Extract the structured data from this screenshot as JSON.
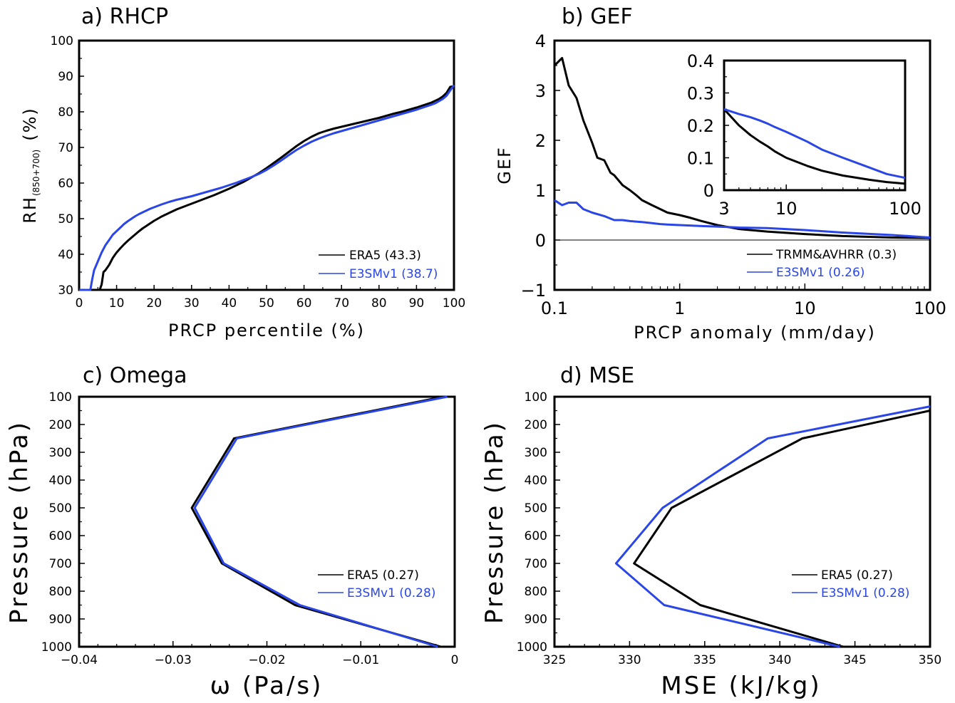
{
  "colors": {
    "black": "#000000",
    "blue": "#2b46e6"
  },
  "chart_data": [
    {
      "id": "a",
      "type": "line",
      "title": "a) RHCP",
      "xlabel": "PRCP percentile (%)",
      "ylabel_main": "RH",
      "ylabel_sub": "(850+700)",
      "ylabel_unit": "(%)",
      "xlim": [
        0,
        100
      ],
      "ylim": [
        30,
        100
      ],
      "xticks": [
        0,
        10,
        20,
        30,
        40,
        50,
        60,
        70,
        80,
        90,
        100
      ],
      "yticks": [
        30,
        40,
        50,
        60,
        70,
        80,
        90,
        100
      ],
      "legend_position": "bottom-right",
      "series": [
        {
          "name": "ERA5 (43.3)",
          "color": "#000000",
          "x": [
            0,
            5.5,
            6,
            6.5,
            7,
            8,
            9,
            10,
            11,
            12,
            13,
            14,
            15,
            16,
            17,
            18,
            19,
            20,
            21,
            22,
            23,
            24,
            25,
            26,
            27,
            28,
            29,
            30,
            32,
            34,
            36,
            38,
            40,
            42,
            44,
            46,
            48,
            50,
            52,
            54,
            56,
            58,
            60,
            62,
            64,
            66,
            68,
            70,
            72,
            74,
            76,
            78,
            80,
            82,
            84,
            86,
            88,
            90,
            92,
            94,
            95,
            96,
            97,
            98,
            99,
            100
          ],
          "y": [
            30,
            30,
            31.5,
            35,
            35.5,
            37,
            39,
            40.5,
            41.7,
            42.8,
            43.8,
            44.7,
            45.6,
            46.5,
            47.3,
            48,
            48.7,
            49.4,
            50,
            50.6,
            51.1,
            51.6,
            52.1,
            52.6,
            53,
            53.4,
            53.8,
            54.2,
            55,
            55.8,
            56.6,
            57.5,
            58.4,
            59.4,
            60.4,
            61.6,
            62.8,
            64.2,
            65.7,
            67.2,
            68.8,
            70.4,
            71.8,
            73,
            74,
            74.7,
            75.3,
            75.8,
            76.3,
            76.8,
            77.3,
            77.8,
            78.3,
            78.9,
            79.5,
            80,
            80.6,
            81.2,
            81.9,
            82.6,
            83.1,
            83.6,
            84.3,
            85.3,
            87,
            87.2
          ]
        },
        {
          "name": "E3SMv1 (38.7)",
          "color": "#2b46e6",
          "x": [
            0,
            3,
            3.5,
            4,
            5,
            6,
            7,
            8,
            9,
            10,
            11,
            12,
            13,
            14,
            15,
            16,
            17,
            18,
            19,
            20,
            22,
            24,
            26,
            28,
            30,
            32,
            34,
            36,
            38,
            40,
            42,
            44,
            46,
            48,
            50,
            52,
            54,
            56,
            58,
            60,
            62,
            64,
            66,
            68,
            70,
            72,
            74,
            76,
            78,
            80,
            82,
            84,
            86,
            88,
            90,
            92,
            94,
            95,
            96,
            97,
            98,
            99,
            100
          ],
          "y": [
            30,
            30,
            33,
            35.5,
            38,
            40.5,
            42.5,
            44,
            45.5,
            46.5,
            47.5,
            48.5,
            49.3,
            50,
            50.7,
            51.3,
            51.8,
            52.3,
            52.8,
            53.2,
            54,
            54.7,
            55.3,
            55.8,
            56.3,
            56.9,
            57.5,
            58.1,
            58.7,
            59.4,
            60.1,
            60.9,
            61.7,
            62.6,
            63.7,
            65,
            66.4,
            67.9,
            69.3,
            70.5,
            71.6,
            72.5,
            73.3,
            74,
            74.6,
            75.2,
            75.8,
            76.4,
            77,
            77.6,
            78.2,
            78.8,
            79.4,
            80,
            80.6,
            81.3,
            82,
            82.4,
            83,
            83.6,
            84.5,
            86,
            87.5
          ]
        }
      ]
    },
    {
      "id": "b",
      "type": "line",
      "title": "b) GEF",
      "xlabel": "PRCP anomaly (mm/day)",
      "ylabel": "GEF",
      "xscale": "log",
      "xlim": [
        0.1,
        100
      ],
      "ylim": [
        -1,
        4
      ],
      "xtick_labels": [
        "0.1",
        "1",
        "10",
        "100"
      ],
      "ytick_labels": [
        "−1",
        "0",
        "1",
        "2",
        "3",
        "4"
      ],
      "legend_position": "bottom-right",
      "series": [
        {
          "name": "TRMM&AVHRR (0.3)",
          "color": "#000000",
          "x": [
            0.1,
            0.115,
            0.13,
            0.15,
            0.17,
            0.2,
            0.22,
            0.25,
            0.28,
            0.3,
            0.35,
            0.4,
            0.45,
            0.5,
            0.6,
            0.7,
            0.8,
            1,
            1.2,
            1.5,
            2,
            3,
            5,
            10,
            20,
            50,
            100
          ],
          "y": [
            3.5,
            3.65,
            3.1,
            2.85,
            2.4,
            1.95,
            1.65,
            1.6,
            1.35,
            1.3,
            1.1,
            1.0,
            0.9,
            0.8,
            0.7,
            0.62,
            0.55,
            0.5,
            0.45,
            0.38,
            0.3,
            0.22,
            0.17,
            0.12,
            0.08,
            0.05,
            0.04
          ]
        },
        {
          "name": "E3SMv1 (0.26)",
          "color": "#2b46e6",
          "x": [
            0.1,
            0.115,
            0.13,
            0.15,
            0.17,
            0.2,
            0.25,
            0.3,
            0.35,
            0.4,
            0.5,
            0.6,
            0.7,
            0.8,
            1,
            1.5,
            2,
            3,
            5,
            10,
            20,
            50,
            100
          ],
          "y": [
            0.8,
            0.7,
            0.75,
            0.75,
            0.62,
            0.55,
            0.48,
            0.4,
            0.4,
            0.38,
            0.36,
            0.34,
            0.32,
            0.31,
            0.3,
            0.28,
            0.27,
            0.25,
            0.24,
            0.2,
            0.15,
            0.1,
            0.05
          ]
        },
        {
          "name": "zero line",
          "color": "#000000",
          "x": [
            0.1,
            100
          ],
          "y": [
            0,
            0
          ]
        }
      ],
      "inset": {
        "xscale": "log",
        "xlim": [
          3,
          100
        ],
        "ylim": [
          0,
          0.4
        ],
        "xtick_labels": [
          "3",
          "10",
          "100"
        ],
        "ytick_labels": [
          "0",
          "0.1",
          "0.2",
          "0.3",
          "0.4"
        ],
        "series": [
          {
            "color": "#000000",
            "x": [
              3,
              4,
              5,
              6,
              7,
              8,
              10,
              15,
              20,
              30,
              50,
              70,
              100
            ],
            "y": [
              0.25,
              0.2,
              0.17,
              0.15,
              0.135,
              0.12,
              0.1,
              0.075,
              0.06,
              0.045,
              0.032,
              0.025,
              0.02
            ]
          },
          {
            "color": "#2b46e6",
            "x": [
              3,
              4,
              5,
              6,
              7,
              8,
              10,
              15,
              20,
              30,
              50,
              70,
              100
            ],
            "y": [
              0.25,
              0.235,
              0.225,
              0.215,
              0.205,
              0.195,
              0.18,
              0.15,
              0.125,
              0.1,
              0.07,
              0.05,
              0.038
            ]
          }
        ]
      }
    },
    {
      "id": "c",
      "type": "line",
      "title": "c) Omega",
      "xlabel": "ω (Pa/s)",
      "ylabel": "Pressure (hPa)",
      "xlim": [
        -0.04,
        0
      ],
      "ylim": [
        1000,
        100
      ],
      "y_inverted": true,
      "xtick_labels": [
        "−0.04",
        "−0.03",
        "−0.02",
        "−0.01",
        "0"
      ],
      "ytick_labels": [
        "100",
        "200",
        "300",
        "400",
        "500",
        "600",
        "700",
        "800",
        "900",
        "1000"
      ],
      "legend_position": "bottom-right",
      "series": [
        {
          "name": "ERA5 (0.27)",
          "color": "#000000",
          "x": [
            -0.0012,
            -0.0235,
            -0.028,
            -0.0248,
            -0.017,
            -0.0015
          ],
          "y": [
            100,
            250,
            500,
            700,
            850,
            1000
          ]
        },
        {
          "name": "E3SMv1 (0.28)",
          "color": "#2b46e6",
          "x": [
            -0.0008,
            -0.0232,
            -0.0277,
            -0.0246,
            -0.0165,
            -0.0018
          ],
          "y": [
            100,
            250,
            500,
            700,
            850,
            1000
          ]
        }
      ]
    },
    {
      "id": "d",
      "type": "line",
      "title": "d) MSE",
      "xlabel": "MSE (kJ/kg)",
      "ylabel": "Pressure (hPa)",
      "xlim": [
        325,
        350
      ],
      "ylim": [
        1000,
        100
      ],
      "y_inverted": true,
      "xtick_labels": [
        "325",
        "330",
        "335",
        "340",
        "345",
        "350"
      ],
      "ytick_labels": [
        "100",
        "200",
        "300",
        "400",
        "500",
        "600",
        "700",
        "800",
        "900",
        "1000"
      ],
      "legend_position": "bottom-right",
      "series": [
        {
          "name": "ERA5 (0.27)",
          "color": "#000000",
          "x": [
            350,
            341.5,
            332.8,
            330.3,
            334.7,
            344.2
          ],
          "y": [
            150,
            250,
            500,
            700,
            850,
            1000
          ]
        },
        {
          "name": "E3SMv1 (0.28)",
          "color": "#2b46e6",
          "x": [
            350,
            339.2,
            332.2,
            329.1,
            332.3,
            344
          ],
          "y": [
            135,
            250,
            500,
            700,
            850,
            1000
          ]
        }
      ]
    }
  ]
}
